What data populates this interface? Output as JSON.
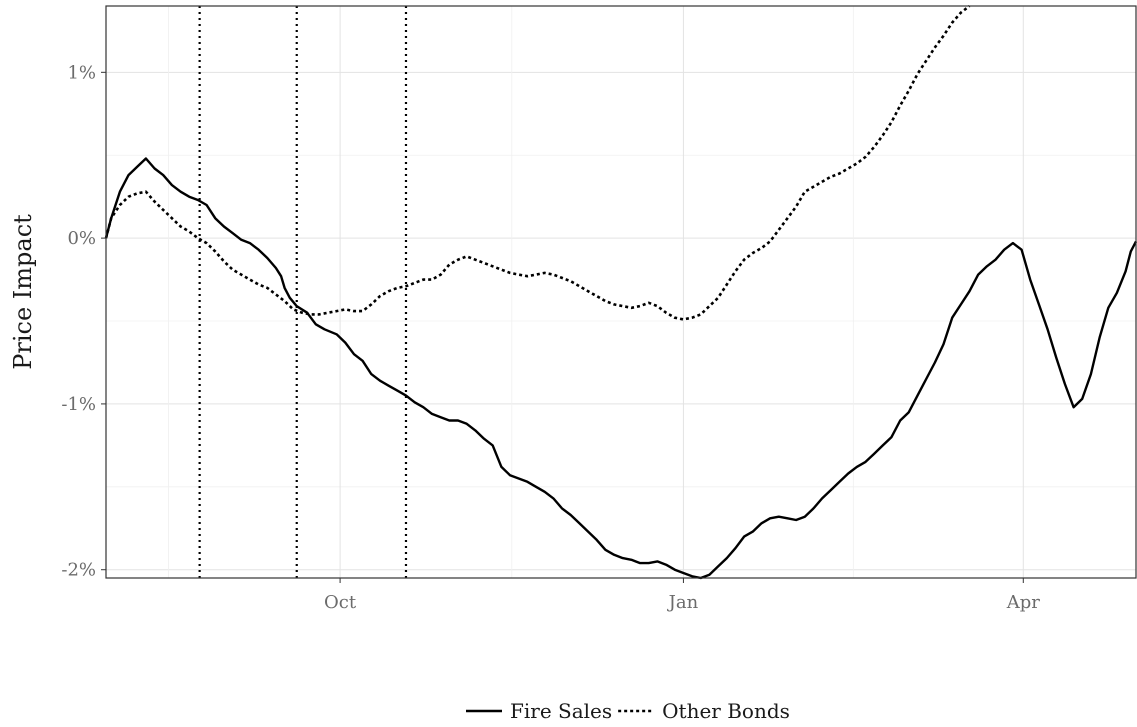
{
  "chart_data": {
    "type": "line",
    "title": "",
    "xlabel": "",
    "ylabel": "Price Impact",
    "x_ticks": [
      {
        "day": 107,
        "label": "Oct"
      },
      {
        "day": 305,
        "label": "Jan"
      },
      {
        "day": 501,
        "label": "Apr"
      }
    ],
    "y_ticks": [
      {
        "value": 1,
        "label": "1%"
      },
      {
        "value": 0,
        "label": "0%"
      },
      {
        "value": -1,
        "label": "-1%"
      },
      {
        "value": -2,
        "label": "-2%"
      }
    ],
    "xlim": [
      -28,
      566
    ],
    "ylim": [
      -2.05,
      1.4
    ],
    "grid": true,
    "legend_position": "bottom",
    "vlines": {
      "style": "dotted",
      "x_days": [
        26,
        82,
        145
      ]
    },
    "series": [
      {
        "name": "Fire Sales",
        "style": "solid",
        "points": [
          [
            -28,
            0.0
          ],
          [
            -25,
            0.12
          ],
          [
            -20,
            0.28
          ],
          [
            -15,
            0.38
          ],
          [
            -10,
            0.43
          ],
          [
            -5,
            0.48
          ],
          [
            0,
            0.42
          ],
          [
            5,
            0.38
          ],
          [
            10,
            0.32
          ],
          [
            15,
            0.28
          ],
          [
            20,
            0.25
          ],
          [
            25,
            0.23
          ],
          [
            30,
            0.2
          ],
          [
            35,
            0.12
          ],
          [
            40,
            0.07
          ],
          [
            45,
            0.03
          ],
          [
            50,
            -0.01
          ],
          [
            55,
            -0.03
          ],
          [
            60,
            -0.07
          ],
          [
            65,
            -0.12
          ],
          [
            70,
            -0.18
          ],
          [
            73,
            -0.23
          ],
          [
            75,
            -0.3
          ],
          [
            78,
            -0.36
          ],
          [
            82,
            -0.41
          ],
          [
            88,
            -0.45
          ],
          [
            93,
            -0.52
          ],
          [
            98,
            -0.55
          ],
          [
            105,
            -0.58
          ],
          [
            110,
            -0.63
          ],
          [
            115,
            -0.7
          ],
          [
            120,
            -0.74
          ],
          [
            125,
            -0.82
          ],
          [
            130,
            -0.86
          ],
          [
            135,
            -0.89
          ],
          [
            140,
            -0.92
          ],
          [
            145,
            -0.95
          ],
          [
            150,
            -0.99
          ],
          [
            155,
            -1.02
          ],
          [
            160,
            -1.06
          ],
          [
            165,
            -1.08
          ],
          [
            170,
            -1.1
          ],
          [
            175,
            -1.1
          ],
          [
            180,
            -1.12
          ],
          [
            185,
            -1.16
          ],
          [
            190,
            -1.21
          ],
          [
            195,
            -1.25
          ],
          [
            200,
            -1.38
          ],
          [
            205,
            -1.43
          ],
          [
            210,
            -1.45
          ],
          [
            215,
            -1.47
          ],
          [
            220,
            -1.5
          ],
          [
            225,
            -1.53
          ],
          [
            230,
            -1.57
          ],
          [
            235,
            -1.63
          ],
          [
            240,
            -1.67
          ],
          [
            245,
            -1.72
          ],
          [
            250,
            -1.77
          ],
          [
            255,
            -1.82
          ],
          [
            260,
            -1.88
          ],
          [
            265,
            -1.91
          ],
          [
            270,
            -1.93
          ],
          [
            275,
            -1.94
          ],
          [
            280,
            -1.96
          ],
          [
            285,
            -1.96
          ],
          [
            290,
            -1.95
          ],
          [
            295,
            -1.97
          ],
          [
            300,
            -2.0
          ],
          [
            305,
            -2.02
          ],
          [
            310,
            -2.04
          ],
          [
            315,
            -2.05
          ],
          [
            320,
            -2.03
          ],
          [
            325,
            -1.98
          ],
          [
            330,
            -1.93
          ],
          [
            335,
            -1.87
          ],
          [
            340,
            -1.8
          ],
          [
            345,
            -1.77
          ],
          [
            350,
            -1.72
          ],
          [
            355,
            -1.69
          ],
          [
            360,
            -1.68
          ],
          [
            365,
            -1.69
          ],
          [
            370,
            -1.7
          ],
          [
            375,
            -1.68
          ],
          [
            380,
            -1.63
          ],
          [
            385,
            -1.57
          ],
          [
            390,
            -1.52
          ],
          [
            395,
            -1.47
          ],
          [
            400,
            -1.42
          ],
          [
            405,
            -1.38
          ],
          [
            410,
            -1.35
          ],
          [
            415,
            -1.3
          ],
          [
            420,
            -1.25
          ],
          [
            425,
            -1.2
          ],
          [
            430,
            -1.1
          ],
          [
            435,
            -1.05
          ],
          [
            440,
            -0.95
          ],
          [
            445,
            -0.85
          ],
          [
            450,
            -0.75
          ],
          [
            455,
            -0.64
          ],
          [
            460,
            -0.48
          ],
          [
            465,
            -0.4
          ],
          [
            470,
            -0.32
          ],
          [
            475,
            -0.22
          ],
          [
            480,
            -0.17
          ],
          [
            485,
            -0.13
          ],
          [
            490,
            -0.07
          ],
          [
            495,
            -0.03
          ],
          [
            500,
            -0.07
          ],
          [
            505,
            -0.25
          ],
          [
            510,
            -0.4
          ],
          [
            515,
            -0.55
          ],
          [
            520,
            -0.72
          ],
          [
            525,
            -0.88
          ],
          [
            530,
            -1.02
          ],
          [
            535,
            -0.97
          ],
          [
            540,
            -0.82
          ],
          [
            545,
            -0.6
          ],
          [
            550,
            -0.42
          ],
          [
            555,
            -0.33
          ],
          [
            560,
            -0.2
          ],
          [
            563,
            -0.08
          ],
          [
            566,
            -0.02
          ]
        ]
      },
      {
        "name": "Other Bonds",
        "style": "dotted",
        "points": [
          [
            -28,
            0.0
          ],
          [
            -25,
            0.12
          ],
          [
            -20,
            0.2
          ],
          [
            -15,
            0.25
          ],
          [
            -10,
            0.27
          ],
          [
            -5,
            0.28
          ],
          [
            0,
            0.22
          ],
          [
            5,
            0.17
          ],
          [
            10,
            0.12
          ],
          [
            15,
            0.07
          ],
          [
            20,
            0.04
          ],
          [
            25,
            0.0
          ],
          [
            30,
            -0.03
          ],
          [
            35,
            -0.08
          ],
          [
            40,
            -0.14
          ],
          [
            45,
            -0.19
          ],
          [
            50,
            -0.22
          ],
          [
            55,
            -0.25
          ],
          [
            60,
            -0.28
          ],
          [
            65,
            -0.3
          ],
          [
            70,
            -0.34
          ],
          [
            75,
            -0.38
          ],
          [
            80,
            -0.43
          ],
          [
            85,
            -0.45
          ],
          [
            90,
            -0.46
          ],
          [
            95,
            -0.46
          ],
          [
            100,
            -0.45
          ],
          [
            105,
            -0.44
          ],
          [
            110,
            -0.43
          ],
          [
            115,
            -0.44
          ],
          [
            120,
            -0.44
          ],
          [
            125,
            -0.4
          ],
          [
            130,
            -0.35
          ],
          [
            135,
            -0.32
          ],
          [
            140,
            -0.3
          ],
          [
            145,
            -0.29
          ],
          [
            150,
            -0.27
          ],
          [
            155,
            -0.25
          ],
          [
            160,
            -0.25
          ],
          [
            165,
            -0.22
          ],
          [
            170,
            -0.16
          ],
          [
            175,
            -0.13
          ],
          [
            180,
            -0.11
          ],
          [
            185,
            -0.13
          ],
          [
            190,
            -0.15
          ],
          [
            195,
            -0.17
          ],
          [
            200,
            -0.19
          ],
          [
            205,
            -0.21
          ],
          [
            210,
            -0.22
          ],
          [
            215,
            -0.23
          ],
          [
            220,
            -0.22
          ],
          [
            225,
            -0.21
          ],
          [
            230,
            -0.22
          ],
          [
            235,
            -0.24
          ],
          [
            240,
            -0.26
          ],
          [
            245,
            -0.29
          ],
          [
            250,
            -0.32
          ],
          [
            255,
            -0.35
          ],
          [
            260,
            -0.38
          ],
          [
            265,
            -0.4
          ],
          [
            270,
            -0.41
          ],
          [
            275,
            -0.42
          ],
          [
            280,
            -0.41
          ],
          [
            285,
            -0.39
          ],
          [
            290,
            -0.41
          ],
          [
            295,
            -0.45
          ],
          [
            300,
            -0.48
          ],
          [
            305,
            -0.49
          ],
          [
            310,
            -0.48
          ],
          [
            315,
            -0.46
          ],
          [
            320,
            -0.41
          ],
          [
            325,
            -0.36
          ],
          [
            330,
            -0.28
          ],
          [
            335,
            -0.2
          ],
          [
            340,
            -0.13
          ],
          [
            345,
            -0.09
          ],
          [
            350,
            -0.06
          ],
          [
            355,
            -0.02
          ],
          [
            360,
            0.05
          ],
          [
            365,
            0.12
          ],
          [
            370,
            0.19
          ],
          [
            375,
            0.28
          ],
          [
            380,
            0.31
          ],
          [
            385,
            0.34
          ],
          [
            390,
            0.37
          ],
          [
            395,
            0.39
          ],
          [
            400,
            0.42
          ],
          [
            405,
            0.45
          ],
          [
            410,
            0.49
          ],
          [
            415,
            0.55
          ],
          [
            420,
            0.62
          ],
          [
            425,
            0.7
          ],
          [
            430,
            0.8
          ],
          [
            435,
            0.89
          ],
          [
            440,
            0.99
          ],
          [
            445,
            1.07
          ],
          [
            450,
            1.15
          ],
          [
            455,
            1.22
          ],
          [
            460,
            1.3
          ],
          [
            465,
            1.36
          ],
          [
            470,
            1.41
          ]
        ]
      }
    ]
  }
}
